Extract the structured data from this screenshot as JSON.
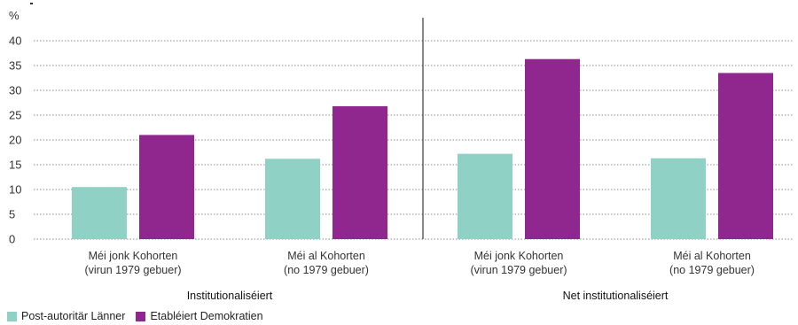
{
  "chart_data": {
    "type": "bar",
    "y_unit_label": "%",
    "ylim": [
      0,
      40
    ],
    "yticks": [
      0,
      5,
      10,
      15,
      20,
      25,
      30,
      35,
      40
    ],
    "grid": true,
    "groups": [
      {
        "label": "Institutionaliséiert",
        "categories": [
          {
            "line1": "Méi jonk Kohorten",
            "line2": "(virun 1979 gebuer)"
          },
          {
            "line1": "Méi al Kohorten",
            "line2": "(no 1979 gebuer)"
          }
        ]
      },
      {
        "label": "Net institutionaliséiert",
        "categories": [
          {
            "line1": "Méi jonk Kohorten",
            "line2": "(virun 1979 gebuer)"
          },
          {
            "line1": "Méi al Kohorten",
            "line2": "(no 1979 gebuer)"
          }
        ]
      }
    ],
    "series": [
      {
        "name": "Post-autoritär Länner",
        "color": "#8fd1c4",
        "values": [
          10.5,
          16.2,
          17.2,
          16.3
        ]
      },
      {
        "name": "Etabléiert Demokratien",
        "color": "#90278e",
        "values": [
          21.0,
          26.8,
          36.3,
          33.5
        ]
      }
    ],
    "legend_position": "bottom-left"
  }
}
